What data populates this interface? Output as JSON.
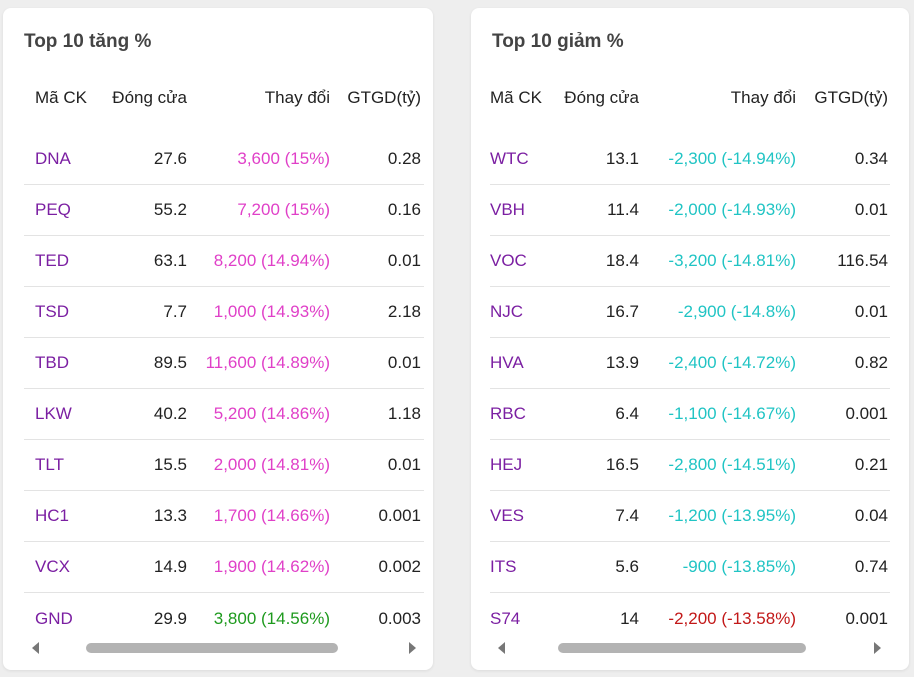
{
  "gainers": {
    "title": "Top 10 tăng %",
    "headers": {
      "symbol": "Mã CK",
      "close": "Đóng cửa",
      "change": "Thay đổi",
      "value": "GTGD(tỷ)"
    },
    "rows": [
      {
        "symbol": "DNA",
        "close": "27.6",
        "change": "3,600 (15%)",
        "value": "0.28",
        "status": "ceiling"
      },
      {
        "symbol": "PEQ",
        "close": "55.2",
        "change": "7,200 (15%)",
        "value": "0.16",
        "status": "ceiling"
      },
      {
        "symbol": "TED",
        "close": "63.1",
        "change": "8,200 (14.94%)",
        "value": "0.01",
        "status": "ceiling"
      },
      {
        "symbol": "TSD",
        "close": "7.7",
        "change": "1,000 (14.93%)",
        "value": "2.18",
        "status": "ceiling"
      },
      {
        "symbol": "TBD",
        "close": "89.5",
        "change": "11,600 (14.89%)",
        "value": "0.01",
        "status": "ceiling"
      },
      {
        "symbol": "LKW",
        "close": "40.2",
        "change": "5,200 (14.86%)",
        "value": "1.18",
        "status": "ceiling"
      },
      {
        "symbol": "TLT",
        "close": "15.5",
        "change": "2,000 (14.81%)",
        "value": "0.01",
        "status": "ceiling"
      },
      {
        "symbol": "HC1",
        "close": "13.3",
        "change": "1,700 (14.66%)",
        "value": "0.001",
        "status": "ceiling"
      },
      {
        "symbol": "VCX",
        "close": "14.9",
        "change": "1,900 (14.62%)",
        "value": "0.002",
        "status": "ceiling"
      },
      {
        "symbol": "GND",
        "close": "29.9",
        "change": "3,800 (14.56%)",
        "value": "0.003",
        "status": "up"
      }
    ]
  },
  "losers": {
    "title": "Top 10 giảm %",
    "headers": {
      "symbol": "Mã CK",
      "close": "Đóng cửa",
      "change": "Thay đổi",
      "value": "GTGD(tỷ)"
    },
    "rows": [
      {
        "symbol": "WTC",
        "close": "13.1",
        "change": "-2,300 (-14.94%)",
        "value": "0.34",
        "status": "floor"
      },
      {
        "symbol": "VBH",
        "close": "11.4",
        "change": "-2,000 (-14.93%)",
        "value": "0.01",
        "status": "floor"
      },
      {
        "symbol": "VOC",
        "close": "18.4",
        "change": "-3,200 (-14.81%)",
        "value": "116.54",
        "status": "floor"
      },
      {
        "symbol": "NJC",
        "close": "16.7",
        "change": "-2,900 (-14.8%)",
        "value": "0.01",
        "status": "floor"
      },
      {
        "symbol": "HVA",
        "close": "13.9",
        "change": "-2,400 (-14.72%)",
        "value": "0.82",
        "status": "floor"
      },
      {
        "symbol": "RBC",
        "close": "6.4",
        "change": "-1,100 (-14.67%)",
        "value": "0.001",
        "status": "floor"
      },
      {
        "symbol": "HEJ",
        "close": "16.5",
        "change": "-2,800 (-14.51%)",
        "value": "0.21",
        "status": "floor"
      },
      {
        "symbol": "VES",
        "close": "7.4",
        "change": "-1,200 (-13.95%)",
        "value": "0.04",
        "status": "floor"
      },
      {
        "symbol": "ITS",
        "close": "5.6",
        "change": "-900 (-13.85%)",
        "value": "0.74",
        "status": "floor"
      },
      {
        "symbol": "S74",
        "close": "14",
        "change": "-2,200 (-13.58%)",
        "value": "0.001",
        "status": "down"
      }
    ]
  },
  "colors": {
    "symbol": "#7b1fa2",
    "ceiling": "#e040c8",
    "up": "#1e9a1e",
    "floor": "#20c4c4",
    "down": "#c21818"
  },
  "icons": {
    "scroll_left": "chevron-left-icon",
    "scroll_right": "chevron-right-icon"
  }
}
